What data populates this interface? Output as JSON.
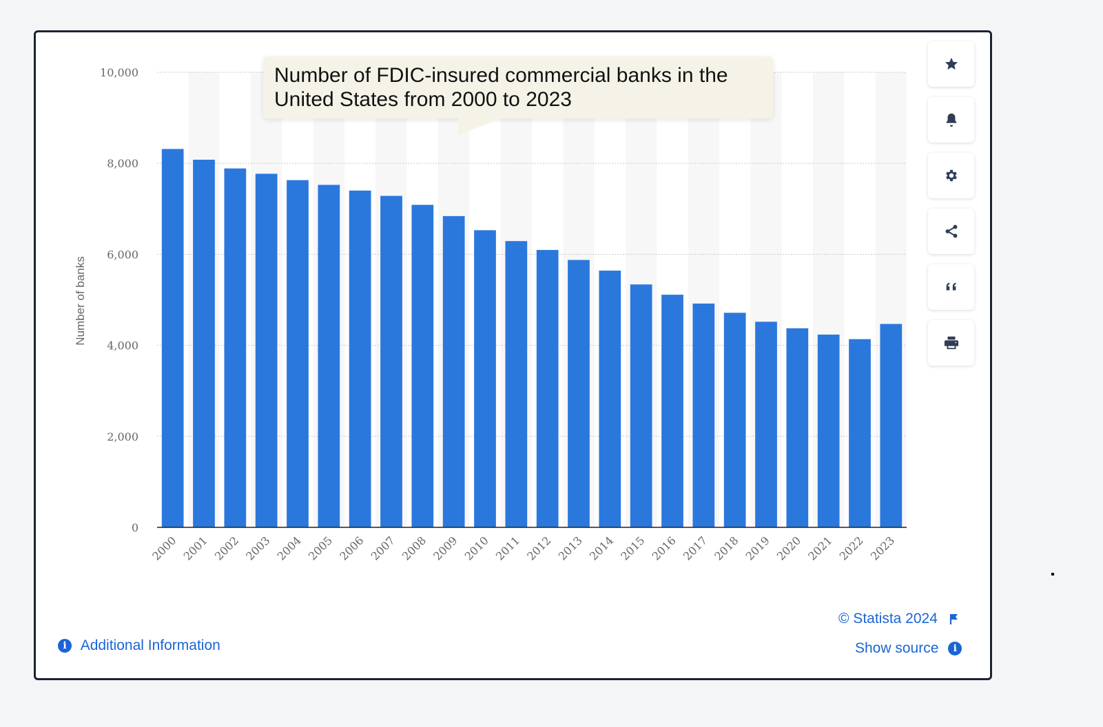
{
  "chart_data": {
    "type": "bar",
    "title": "Number of FDIC-insured commercial banks in the United States from 2000 to 2023",
    "ylabel": "Number of banks",
    "xlabel": "",
    "ylim": [
      0,
      10000
    ],
    "yticks": [
      0,
      2000,
      4000,
      6000,
      8000,
      10000
    ],
    "ytick_labels": [
      "0",
      "2,000",
      "4,000",
      "6,000",
      "8,000",
      "10,000"
    ],
    "categories": [
      "2000",
      "2001",
      "2002",
      "2003",
      "2004",
      "2005",
      "2006",
      "2007",
      "2008",
      "2009",
      "2010",
      "2011",
      "2012",
      "2013",
      "2014",
      "2015",
      "2016",
      "2017",
      "2018",
      "2019",
      "2020",
      "2021",
      "2022",
      "2023"
    ],
    "values": [
      8315,
      8079,
      7887,
      7770,
      7630,
      7526,
      7401,
      7284,
      7087,
      6840,
      6530,
      6291,
      6096,
      5876,
      5642,
      5338,
      5112,
      4918,
      4715,
      4518,
      4375,
      4236,
      4136,
      4470
    ],
    "bar_color": "#2b78dd",
    "grid": true
  },
  "side_buttons": [
    {
      "name": "favorite-button",
      "icon": "star-icon"
    },
    {
      "name": "notification-button",
      "icon": "bell-icon"
    },
    {
      "name": "settings-button",
      "icon": "gear-icon"
    },
    {
      "name": "share-button",
      "icon": "share-icon"
    },
    {
      "name": "cite-button",
      "icon": "quote-icon"
    },
    {
      "name": "print-button",
      "icon": "printer-icon"
    }
  ],
  "footer": {
    "copyright": "© Statista 2024",
    "show_source": "Show source",
    "additional_info": "Additional Information"
  },
  "colors": {
    "accent": "#1a64d6",
    "icon": "#2f3e55",
    "border": "#1b2333"
  }
}
